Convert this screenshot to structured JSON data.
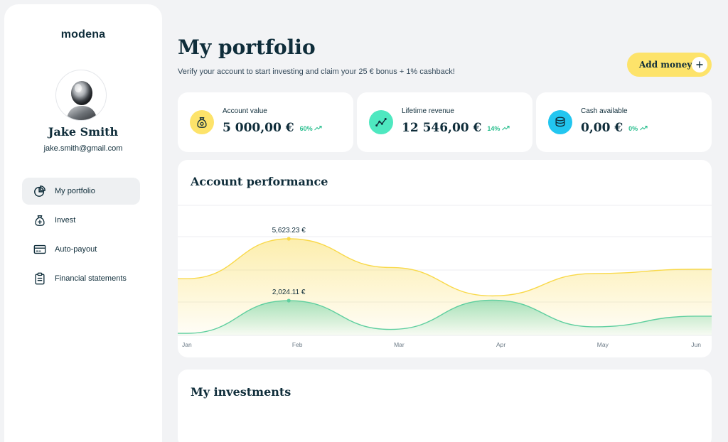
{
  "app": {
    "logo": "modena"
  },
  "user": {
    "name": "Jake Smith",
    "email": "jake.smith@gmail.com"
  },
  "nav": {
    "items": [
      {
        "label": "My portfolio",
        "icon": "pie-chart-icon",
        "active": true
      },
      {
        "label": "Invest",
        "icon": "money-bag-plus-icon",
        "active": false
      },
      {
        "label": "Auto-payout",
        "icon": "credit-card-icon",
        "active": false
      },
      {
        "label": "Financial statements",
        "icon": "clipboard-icon",
        "active": false
      }
    ]
  },
  "header": {
    "title": "My portfolio",
    "subtitle": "Verify your account to start investing and claim your 25 € bonus + 1% cashback!",
    "add_money_label": "Add money",
    "add_money_icon": "plus-icon"
  },
  "stats": [
    {
      "label": "Account value",
      "value": "5 000,00 €",
      "change": "60%",
      "icon": "money-bag-icon",
      "color": "#fde36a"
    },
    {
      "label": "Lifetime revenue",
      "value": "12 546,00 €",
      "change": "14%",
      "icon": "trend-line-icon",
      "color": "#4ee8c0"
    },
    {
      "label": "Cash available",
      "value": "0,00 €",
      "change": "0%",
      "icon": "coins-stack-icon",
      "color": "#22c6f0"
    }
  ],
  "performance": {
    "title": "Account performance"
  },
  "chart_data": {
    "type": "area",
    "categories": [
      "Jan",
      "Feb",
      "Mar",
      "Apr",
      "May",
      "Jun"
    ],
    "series": [
      {
        "color": "#f9d94a",
        "values": [
          3300,
          5623.23,
          3950,
          2300,
          3600,
          3850
        ]
      },
      {
        "color": "#5fcf9f",
        "values": [
          120,
          2024.11,
          350,
          2050,
          500,
          1120
        ]
      }
    ],
    "annotations": [
      {
        "category": "Feb",
        "series": 0,
        "text": "5,623.23 €"
      },
      {
        "category": "Feb",
        "series": 1,
        "text": "2,024.11 €"
      }
    ],
    "grid": true
  },
  "investments": {
    "title": "My investments"
  }
}
